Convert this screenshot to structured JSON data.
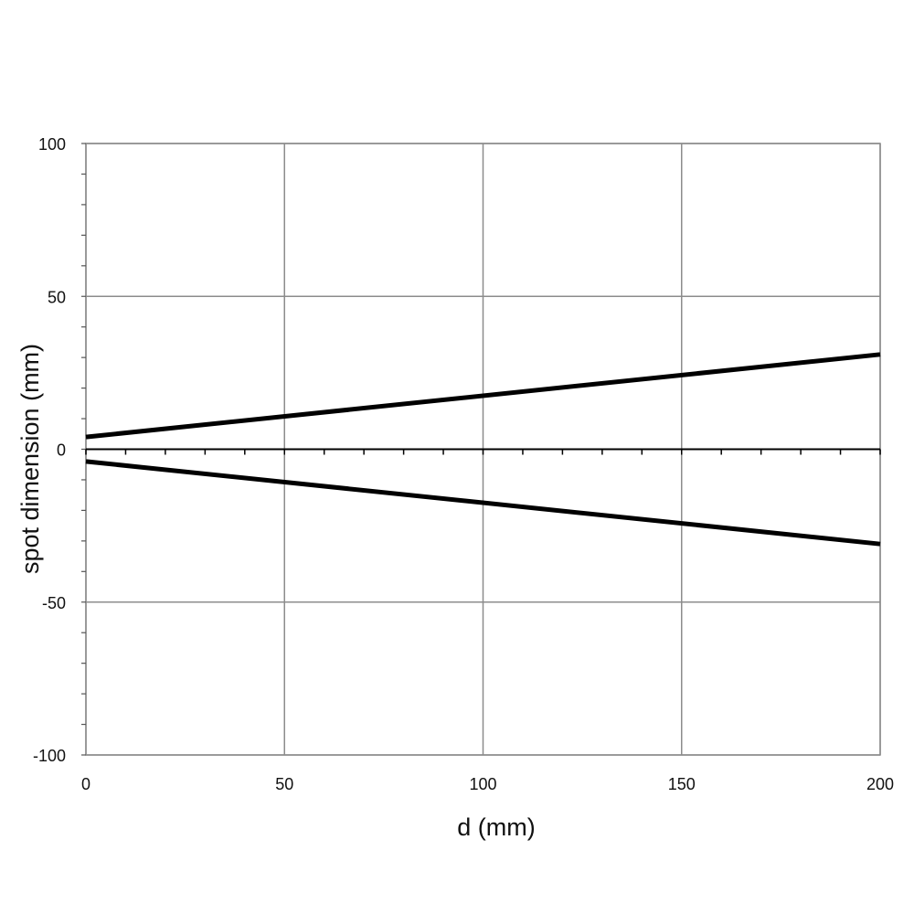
{
  "chart_data": {
    "type": "line",
    "title": "",
    "xlabel": "d (mm)",
    "ylabel": "spot dimension (mm)",
    "xlim": [
      0,
      200
    ],
    "ylim": [
      -100,
      100
    ],
    "x_ticks": [
      0,
      50,
      100,
      150,
      200
    ],
    "x_tick_labels": [
      "0",
      "50",
      "100",
      "150",
      "200"
    ],
    "y_ticks": [
      100,
      50,
      0,
      -50,
      -100
    ],
    "y_tick_labels": [
      "100",
      "50",
      "0",
      "-50",
      "-100"
    ],
    "x_minor_step": 10,
    "y_minor_step": 10,
    "grid": true,
    "legend": "none",
    "series": [
      {
        "x": [
          0,
          200
        ],
        "y": [
          4,
          31
        ]
      },
      {
        "x": [
          0,
          200
        ],
        "y": [
          -4,
          -31
        ]
      }
    ],
    "colors": {
      "series": "#000000",
      "grid": "#8c8c8c",
      "zero_axis": "#000000"
    }
  }
}
